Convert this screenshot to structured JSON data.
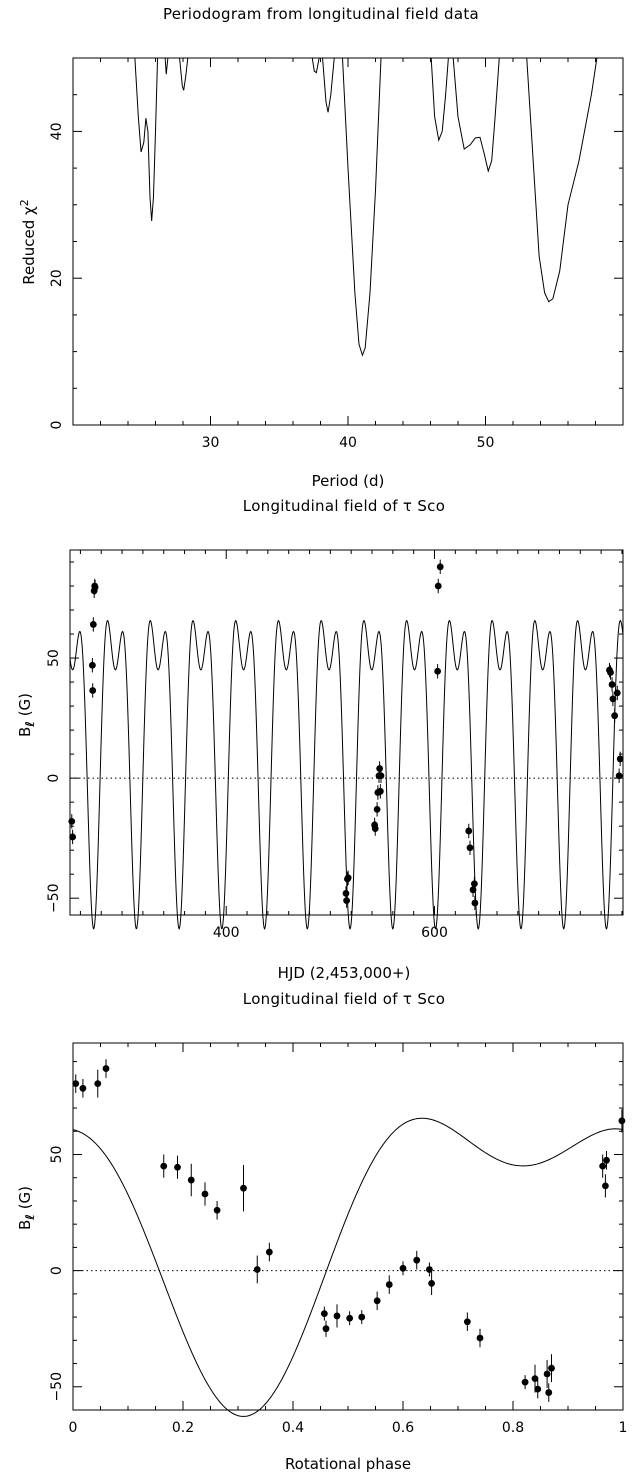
{
  "chart_data": [
    {
      "id": "periodogram",
      "type": "line",
      "title": "Periodogram from longitudinal field data",
      "xlabel": "Period (d)",
      "ylabel_text": "Reduced χ",
      "ylabel_sup": "2",
      "xlim": [
        20,
        60
      ],
      "ylim": [
        0,
        50
      ],
      "xticks": [
        30,
        40,
        50
      ],
      "yticks": [
        0,
        20,
        40
      ],
      "clip_max": 50,
      "curve": [
        [
          24.5,
          50
        ],
        [
          24.75,
          42
        ],
        [
          24.95,
          37.2
        ],
        [
          25.15,
          38.5
        ],
        [
          25.3,
          41.8
        ],
        [
          25.45,
          40
        ],
        [
          25.6,
          31
        ],
        [
          25.72,
          27.8
        ],
        [
          25.85,
          31
        ],
        [
          26.0,
          40
        ],
        [
          26.15,
          50
        ],
        [
          26.7,
          50
        ],
        [
          26.78,
          47.8
        ],
        [
          26.9,
          50
        ],
        [
          27.75,
          50
        ],
        [
          27.95,
          46.2
        ],
        [
          28.05,
          45.6
        ],
        [
          28.2,
          47.5
        ],
        [
          28.35,
          50
        ],
        [
          37.4,
          50
        ],
        [
          37.55,
          48.2
        ],
        [
          37.7,
          48
        ],
        [
          37.9,
          50
        ],
        [
          38.15,
          50
        ],
        [
          38.4,
          44
        ],
        [
          38.55,
          42.6
        ],
        [
          38.75,
          45
        ],
        [
          39.0,
          50
        ],
        [
          39.6,
          50
        ],
        [
          40.0,
          35
        ],
        [
          40.5,
          18
        ],
        [
          40.8,
          11
        ],
        [
          41.05,
          9.5
        ],
        [
          41.25,
          10.5
        ],
        [
          41.6,
          18
        ],
        [
          42.0,
          32
        ],
        [
          42.4,
          50
        ],
        [
          46.05,
          50
        ],
        [
          46.3,
          42
        ],
        [
          46.6,
          38.8
        ],
        [
          46.85,
          40
        ],
        [
          47.1,
          45
        ],
        [
          47.3,
          50
        ],
        [
          47.65,
          50
        ],
        [
          48.0,
          42
        ],
        [
          48.45,
          37.6
        ],
        [
          48.9,
          38.2
        ],
        [
          49.25,
          39.1
        ],
        [
          49.6,
          39.2
        ],
        [
          49.9,
          37
        ],
        [
          50.2,
          34.6
        ],
        [
          50.45,
          36
        ],
        [
          50.7,
          42
        ],
        [
          51.0,
          50
        ],
        [
          53.0,
          50
        ],
        [
          53.5,
          35
        ],
        [
          53.9,
          23
        ],
        [
          54.3,
          18
        ],
        [
          54.6,
          16.8
        ],
        [
          54.9,
          17.2
        ],
        [
          55.4,
          21
        ],
        [
          56.0,
          30
        ],
        [
          56.8,
          36
        ],
        [
          57.7,
          45
        ],
        [
          58.1,
          50
        ]
      ]
    },
    {
      "id": "time-series",
      "type": "scatter",
      "title": "Longitudinal field of τ Sco",
      "xlabel": "HJD (2,453,000+)",
      "ylabel_main": "B",
      "ylabel_sub": "ℓ",
      "ylabel_unit": " (G)",
      "xlim": [
        250,
        781
      ],
      "ylim": [
        -57,
        95
      ],
      "xticks": [
        400,
        600
      ],
      "yticks": [
        -50,
        0,
        50
      ],
      "model_period_d": 41.033,
      "model_phase_ref_hjd": 260.0,
      "model_coeffs": {
        "a0": 21.2,
        "a1": 54.0,
        "phi1_deg": 160.3,
        "a2": 30.0,
        "phi2_deg": 45.2
      },
      "points": [
        {
          "x": 251.7,
          "y": -18.0,
          "err": 3.0
        },
        {
          "x": 252.5,
          "y": -24.5,
          "err": 3.0
        },
        {
          "x": 271.5,
          "y": 47.0,
          "err": 3.0
        },
        {
          "x": 271.8,
          "y": 36.5,
          "err": 3.0
        },
        {
          "x": 272.4,
          "y": 64.0,
          "err": 3.0
        },
        {
          "x": 273.2,
          "y": 78.0,
          "err": 3.0
        },
        {
          "x": 273.7,
          "y": 80.0,
          "err": 3.0
        },
        {
          "x": 274.1,
          "y": 79.5,
          "err": 3.0
        },
        {
          "x": 515.0,
          "y": -48.0,
          "err": 3.0
        },
        {
          "x": 515.6,
          "y": -51.0,
          "err": 3.0
        },
        {
          "x": 516.4,
          "y": -42.0,
          "err": 3.0
        },
        {
          "x": 517.1,
          "y": -41.5,
          "err": 3.0
        },
        {
          "x": 542.5,
          "y": -19.5,
          "err": 3.0
        },
        {
          "x": 543.1,
          "y": -21.0,
          "err": 3.0
        },
        {
          "x": 544.9,
          "y": -13.0,
          "err": 3.0
        },
        {
          "x": 545.6,
          "y": -6.0,
          "err": 3.0
        },
        {
          "x": 546.7,
          "y": 1.0,
          "err": 3.0
        },
        {
          "x": 547.3,
          "y": 4.0,
          "err": 3.0
        },
        {
          "x": 548.0,
          "y": -5.5,
          "err": 3.0
        },
        {
          "x": 548.6,
          "y": 1.0,
          "err": 3.0
        },
        {
          "x": 603.0,
          "y": 44.5,
          "err": 3.0
        },
        {
          "x": 603.6,
          "y": 80.0,
          "err": 3.0
        },
        {
          "x": 605.5,
          "y": 88.0,
          "err": 3.0
        },
        {
          "x": 632.9,
          "y": -22.0,
          "err": 3.0
        },
        {
          "x": 634.1,
          "y": -29.0,
          "err": 3.0
        },
        {
          "x": 637.0,
          "y": -46.5,
          "err": 3.0
        },
        {
          "x": 638.3,
          "y": -44.0,
          "err": 3.0
        },
        {
          "x": 638.8,
          "y": -52.0,
          "err": 3.0
        },
        {
          "x": 768.0,
          "y": 45.0,
          "err": 3.0
        },
        {
          "x": 769.0,
          "y": 44.0,
          "err": 3.0
        },
        {
          "x": 770.5,
          "y": 39.0,
          "err": 3.0
        },
        {
          "x": 771.3,
          "y": 33.0,
          "err": 3.0
        },
        {
          "x": 773.0,
          "y": 26.0,
          "err": 3.0
        },
        {
          "x": 775.5,
          "y": 35.5,
          "err": 3.0
        },
        {
          "x": 777.3,
          "y": 1.0,
          "err": 3.0
        },
        {
          "x": 778.3,
          "y": 8.0,
          "err": 3.0
        }
      ]
    },
    {
      "id": "phase-curve",
      "type": "scatter",
      "title": "Longitudinal field of τ Sco",
      "xlabel": "Rotational phase",
      "ylabel_main": "B",
      "ylabel_sub": "ℓ",
      "ylabel_unit": " (G)",
      "xlim": [
        0,
        1
      ],
      "ylim": [
        -60,
        98
      ],
      "xticks": [
        0,
        0.2,
        0.4,
        0.6,
        0.8,
        1
      ],
      "xticklabels": [
        "0",
        "0.2",
        "0.4",
        "0.6",
        "0.8",
        "1"
      ],
      "yticks": [
        -50,
        0,
        50
      ],
      "model_coeffs": {
        "a0": 21.2,
        "a1": 54.0,
        "phi1_deg": 160.3,
        "a2": 30.0,
        "phi2_deg": 45.2
      },
      "points": [
        {
          "x": 0.005,
          "y": 80.5,
          "err": 4.0
        },
        {
          "x": 0.018,
          "y": 78.5,
          "err": 4.0
        },
        {
          "x": 0.045,
          "y": 80.5,
          "err": 6.0
        },
        {
          "x": 0.06,
          "y": 87.0,
          "err": 4.0
        },
        {
          "x": 0.165,
          "y": 45.0,
          "err": 5.0
        },
        {
          "x": 0.19,
          "y": 44.5,
          "err": 5.0
        },
        {
          "x": 0.215,
          "y": 39.0,
          "err": 7.0
        },
        {
          "x": 0.24,
          "y": 33.0,
          "err": 5.0
        },
        {
          "x": 0.262,
          "y": 26.0,
          "err": 4.0
        },
        {
          "x": 0.31,
          "y": 35.5,
          "err": 10.0
        },
        {
          "x": 0.335,
          "y": 0.5,
          "err": 6.0
        },
        {
          "x": 0.357,
          "y": 8.0,
          "err": 4.0
        },
        {
          "x": 0.457,
          "y": -18.5,
          "err": 3.0
        },
        {
          "x": 0.46,
          "y": -25.0,
          "err": 3.5
        },
        {
          "x": 0.48,
          "y": -19.5,
          "err": 5.0
        },
        {
          "x": 0.503,
          "y": -20.5,
          "err": 3.0
        },
        {
          "x": 0.525,
          "y": -20.0,
          "err": 3.0
        },
        {
          "x": 0.553,
          "y": -13.0,
          "err": 4.0
        },
        {
          "x": 0.575,
          "y": -6.0,
          "err": 4.0
        },
        {
          "x": 0.6,
          "y": 1.0,
          "err": 3.0
        },
        {
          "x": 0.625,
          "y": 4.5,
          "err": 4.0
        },
        {
          "x": 0.648,
          "y": 0.5,
          "err": 3.0
        },
        {
          "x": 0.652,
          "y": -5.5,
          "err": 5.0
        },
        {
          "x": 0.717,
          "y": -22.0,
          "err": 4.0
        },
        {
          "x": 0.74,
          "y": -29.0,
          "err": 4.0
        },
        {
          "x": 0.822,
          "y": -48.0,
          "err": 3.0
        },
        {
          "x": 0.84,
          "y": -46.5,
          "err": 6.0
        },
        {
          "x": 0.845,
          "y": -51.0,
          "err": 4.0
        },
        {
          "x": 0.862,
          "y": -44.5,
          "err": 6.0
        },
        {
          "x": 0.865,
          "y": -52.5,
          "err": 4.0
        },
        {
          "x": 0.87,
          "y": -42.0,
          "err": 6.0
        },
        {
          "x": 0.963,
          "y": 45.0,
          "err": 5.0
        },
        {
          "x": 0.968,
          "y": 36.5,
          "err": 5.0
        },
        {
          "x": 0.97,
          "y": 47.5,
          "err": 4.0
        },
        {
          "x": 0.998,
          "y": 64.5,
          "err": 5.0
        }
      ]
    }
  ]
}
